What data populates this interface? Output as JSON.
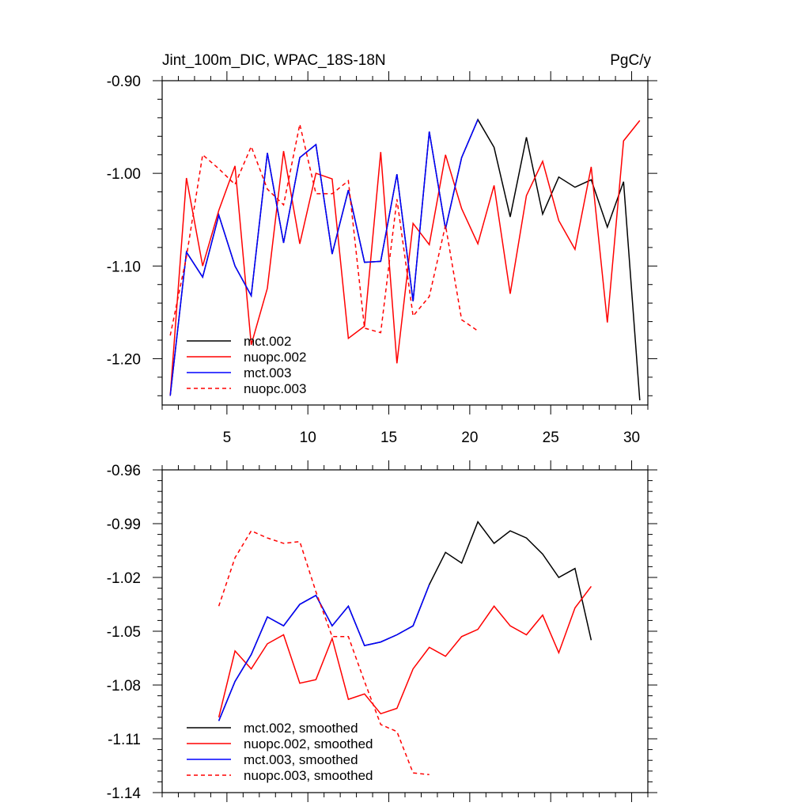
{
  "chart_data": [
    {
      "type": "line",
      "title": "Jint_100m_DIC, WPAC_18S-18N",
      "units": "PgC/y",
      "xlim": [
        1,
        31
      ],
      "ylim": [
        -1.25,
        -0.9
      ],
      "x_tick_labels": [
        "5",
        "10",
        "15",
        "20",
        "25",
        "30"
      ],
      "y_tick_labels": [
        "-0.90",
        "-1.00",
        "-1.10",
        "-1.20"
      ],
      "series": [
        {
          "name": "mct.002",
          "color": "#000000",
          "dash": false,
          "x": [
            1.5,
            2.5,
            3.5,
            4.5,
            5.5,
            6.5,
            7.5,
            8.5,
            9.5,
            10.5,
            11.5,
            12.5,
            13.5,
            14.5,
            15.5,
            16.5,
            17.5,
            18.5,
            19.5,
            20.5,
            21.5,
            22.5,
            23.5,
            24.5,
            25.5,
            26.5,
            27.5,
            28.5,
            29.5,
            30.5
          ],
          "values": [
            -1.24,
            -1.085,
            -1.112,
            -1.045,
            -1.1,
            -1.132,
            -0.978,
            -1.075,
            -0.983,
            -0.969,
            -1.087,
            -1.018,
            -1.096,
            -1.095,
            -1.001,
            -1.138,
            -0.955,
            -1.06,
            -0.983,
            -0.942,
            -0.972,
            -1.047,
            -0.961,
            -1.044,
            -1.004,
            -1.015,
            -1.007,
            -1.058,
            -1.009,
            -1.245
          ]
        },
        {
          "name": "nuopc.002",
          "color": "#ff0000",
          "dash": false,
          "x": [
            1.5,
            2.5,
            3.5,
            4.5,
            5.5,
            6.5,
            7.5,
            8.5,
            9.5,
            10.5,
            11.5,
            12.5,
            13.5,
            14.5,
            15.5,
            16.5,
            17.5,
            18.5,
            19.5,
            20.5,
            21.5,
            22.5,
            23.5,
            24.5,
            25.5,
            26.5,
            27.5,
            28.5,
            29.5,
            30.5
          ],
          "values": [
            -1.24,
            -1.005,
            -1.1,
            -1.04,
            -0.992,
            -1.185,
            -1.124,
            -0.976,
            -1.076,
            -1.0,
            -1.006,
            -1.178,
            -1.165,
            -0.977,
            -1.205,
            -1.054,
            -1.077,
            -0.98,
            -1.038,
            -1.076,
            -1.013,
            -1.13,
            -1.024,
            -0.987,
            -1.051,
            -1.082,
            -0.993,
            -1.161,
            -0.965,
            -0.943
          ]
        },
        {
          "name": "mct.003",
          "color": "#0000ff",
          "dash": false,
          "x": [
            1.5,
            2.5,
            3.5,
            4.5,
            5.5,
            6.5,
            7.5,
            8.5,
            9.5,
            10.5,
            11.5,
            12.5,
            13.5,
            14.5,
            15.5,
            16.5,
            17.5,
            18.5,
            19.5,
            20.5
          ],
          "values": [
            -1.24,
            -1.085,
            -1.112,
            -1.045,
            -1.1,
            -1.132,
            -0.978,
            -1.075,
            -0.983,
            -0.969,
            -1.087,
            -1.018,
            -1.096,
            -1.095,
            -1.001,
            -1.138,
            -0.955,
            -1.06,
            -0.983,
            -0.942
          ]
        },
        {
          "name": "nuopc.003",
          "color": "#ff0000",
          "dash": true,
          "x": [
            1.5,
            2.5,
            3.5,
            4.5,
            5.5,
            6.5,
            7.5,
            8.5,
            9.5,
            10.5,
            11.5,
            12.5,
            13.5,
            14.5,
            15.5,
            16.5,
            17.5,
            18.5,
            19.5,
            20.5
          ],
          "values": [
            -1.175,
            -1.09,
            -0.98,
            -0.995,
            -1.012,
            -0.971,
            -1.017,
            -1.034,
            -0.947,
            -1.022,
            -1.022,
            -1.008,
            -1.167,
            -1.172,
            -1.028,
            -1.154,
            -1.133,
            -1.056,
            -1.158,
            -1.17
          ]
        }
      ]
    },
    {
      "type": "line",
      "title": "",
      "xlim": [
        1,
        31
      ],
      "ylim": [
        -1.14,
        -0.96
      ],
      "x_tick_labels": [],
      "y_tick_labels": [
        "-0.96",
        "-0.99",
        "-1.02",
        "-1.05",
        "-1.08",
        "-1.11",
        "-1.14"
      ],
      "series": [
        {
          "name": "mct.002, smoothed",
          "color": "#000000",
          "dash": false,
          "x": [
            4.5,
            5.5,
            6.5,
            7.5,
            8.5,
            9.5,
            10.5,
            11.5,
            12.5,
            13.5,
            14.5,
            15.5,
            16.5,
            17.5,
            18.5,
            19.5,
            20.5,
            21.5,
            22.5,
            23.5,
            24.5,
            25.5,
            26.5,
            27.5
          ],
          "values": [
            -1.1,
            -1.078,
            -1.063,
            -1.042,
            -1.047,
            -1.035,
            -1.03,
            -1.047,
            -1.036,
            -1.058,
            -1.056,
            -1.052,
            -1.047,
            -1.024,
            -1.006,
            -1.012,
            -0.989,
            -1.001,
            -0.994,
            -0.998,
            -1.007,
            -1.02,
            -1.015,
            -1.055
          ]
        },
        {
          "name": "nuopc.002, smoothed",
          "color": "#ff0000",
          "dash": false,
          "x": [
            4.5,
            5.5,
            6.5,
            7.5,
            8.5,
            9.5,
            10.5,
            11.5,
            12.5,
            13.5,
            14.5,
            15.5,
            16.5,
            17.5,
            18.5,
            19.5,
            20.5,
            21.5,
            22.5,
            23.5,
            24.5,
            25.5,
            26.5,
            27.5
          ],
          "values": [
            -1.098,
            -1.061,
            -1.071,
            -1.057,
            -1.052,
            -1.079,
            -1.077,
            -1.054,
            -1.088,
            -1.085,
            -1.096,
            -1.093,
            -1.071,
            -1.059,
            -1.064,
            -1.053,
            -1.049,
            -1.036,
            -1.047,
            -1.052,
            -1.041,
            -1.062,
            -1.037,
            -1.025
          ]
        },
        {
          "name": "mct.003, smoothed",
          "color": "#0000ff",
          "dash": false,
          "x": [
            4.5,
            5.5,
            6.5,
            7.5,
            8.5,
            9.5,
            10.5,
            11.5,
            12.5,
            13.5,
            14.5,
            15.5,
            16.5,
            17.5
          ],
          "values": [
            -1.1,
            -1.078,
            -1.063,
            -1.042,
            -1.047,
            -1.035,
            -1.03,
            -1.047,
            -1.036,
            -1.058,
            -1.056,
            -1.052,
            -1.047,
            -1.024
          ]
        },
        {
          "name": "nuopc.003, smoothed",
          "color": "#ff0000",
          "dash": true,
          "x": [
            4.5,
            5.5,
            6.5,
            7.5,
            8.5,
            9.5,
            10.5,
            11.5,
            12.5,
            13.5,
            14.5,
            15.5,
            16.5,
            17.5
          ],
          "values": [
            -1.036,
            -1.009,
            -0.994,
            -0.998,
            -1.001,
            -1.0,
            -1.028,
            -1.053,
            -1.053,
            -1.078,
            -1.102,
            -1.106,
            -1.129,
            -1.13
          ]
        }
      ]
    }
  ]
}
